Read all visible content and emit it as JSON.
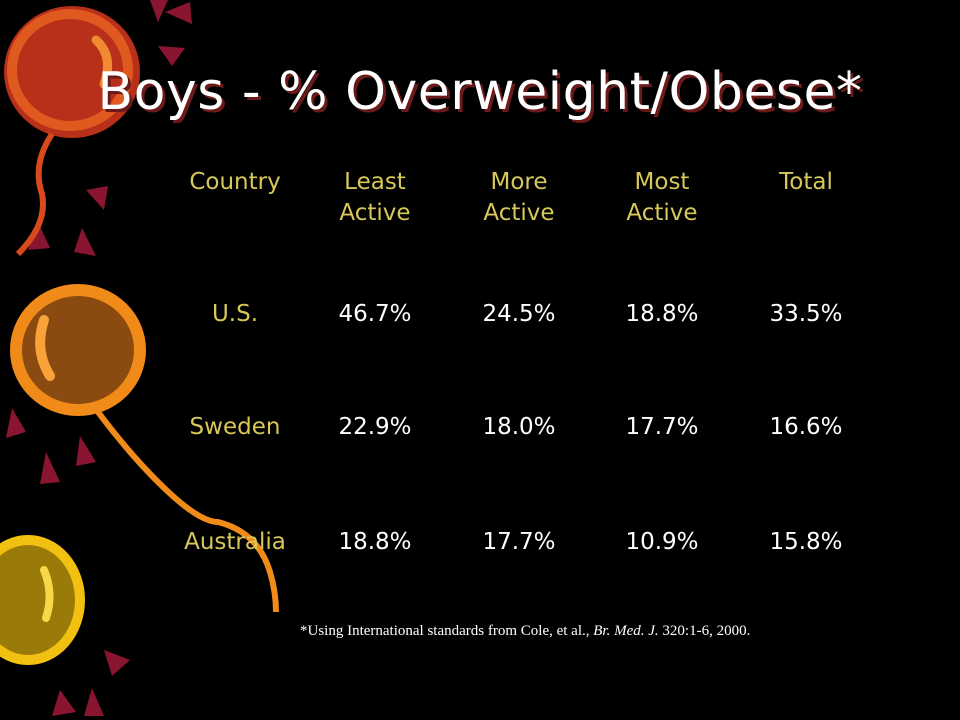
{
  "slide": {
    "title": "Boys - % Overweight/Obese*",
    "table": {
      "headers": [
        "Country",
        "Least\nActive",
        "More\nActive",
        "Most\nActive",
        "Total"
      ],
      "rows": [
        {
          "country": "U.S.",
          "values": [
            "46.7%",
            "24.5%",
            "18.8%",
            "33.5%"
          ]
        },
        {
          "country": "Sweden",
          "values": [
            "22.9%",
            "18.0%",
            "17.7%",
            "16.6%"
          ]
        },
        {
          "country": "Australia",
          "values": [
            "18.8%",
            "17.7%",
            "10.9%",
            "15.8%"
          ]
        }
      ]
    },
    "footnote": {
      "prefix": "*Using International standards from Cole, et al., ",
      "journal": "Br. Med. J.",
      "suffix": " 320:1-6, 2000."
    }
  },
  "colors": {
    "background": "#000000",
    "title": "#ffffff",
    "title_shadow": "#6b1a1a",
    "header_text": "#d8c85a",
    "value_text": "#ffffff"
  },
  "decor_icons": [
    "balloon-red-icon",
    "balloon-orange-icon",
    "balloon-yellow-icon",
    "confetti-icon"
  ]
}
